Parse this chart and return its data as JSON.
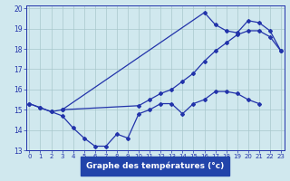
{
  "bg_color": "#d0e8ee",
  "grid_color": "#a8c8cc",
  "line_color": "#2233aa",
  "xlabel": "Graphe des températures (°c)",
  "xlabel_bg": "#2244aa",
  "xlim": [
    0,
    23
  ],
  "ylim": [
    13,
    20
  ],
  "yticks": [
    13,
    14,
    15,
    16,
    17,
    18,
    19,
    20
  ],
  "xticks": [
    0,
    1,
    2,
    3,
    4,
    5,
    6,
    7,
    8,
    9,
    10,
    11,
    12,
    13,
    14,
    15,
    16,
    17,
    18,
    19,
    20,
    21,
    22,
    23
  ],
  "line1_x": [
    0,
    1,
    2,
    3,
    4,
    5,
    6,
    7,
    8,
    9,
    10,
    11,
    12,
    13,
    14,
    15,
    16,
    17,
    18,
    19,
    20,
    21
  ],
  "line1_y": [
    15.3,
    15.1,
    14.9,
    14.7,
    14.1,
    13.6,
    13.2,
    13.2,
    13.8,
    13.6,
    14.8,
    15.0,
    15.3,
    15.3,
    14.8,
    15.3,
    15.5,
    15.9,
    15.9,
    15.8,
    15.5,
    15.3
  ],
  "line2_x": [
    0,
    1,
    2,
    3,
    10,
    11,
    12,
    13,
    14,
    15,
    16,
    17,
    18,
    19,
    20,
    21,
    22,
    23
  ],
  "line2_y": [
    15.3,
    15.1,
    14.9,
    15.0,
    15.2,
    15.5,
    15.8,
    16.0,
    16.4,
    16.8,
    17.4,
    17.9,
    18.3,
    18.7,
    18.9,
    18.9,
    18.6,
    17.9
  ],
  "line3_x": [
    3,
    16,
    17,
    18,
    19,
    20,
    21,
    22,
    23
  ],
  "line3_y": [
    15.0,
    19.8,
    19.2,
    18.9,
    18.8,
    19.4,
    19.3,
    18.9,
    17.9
  ]
}
